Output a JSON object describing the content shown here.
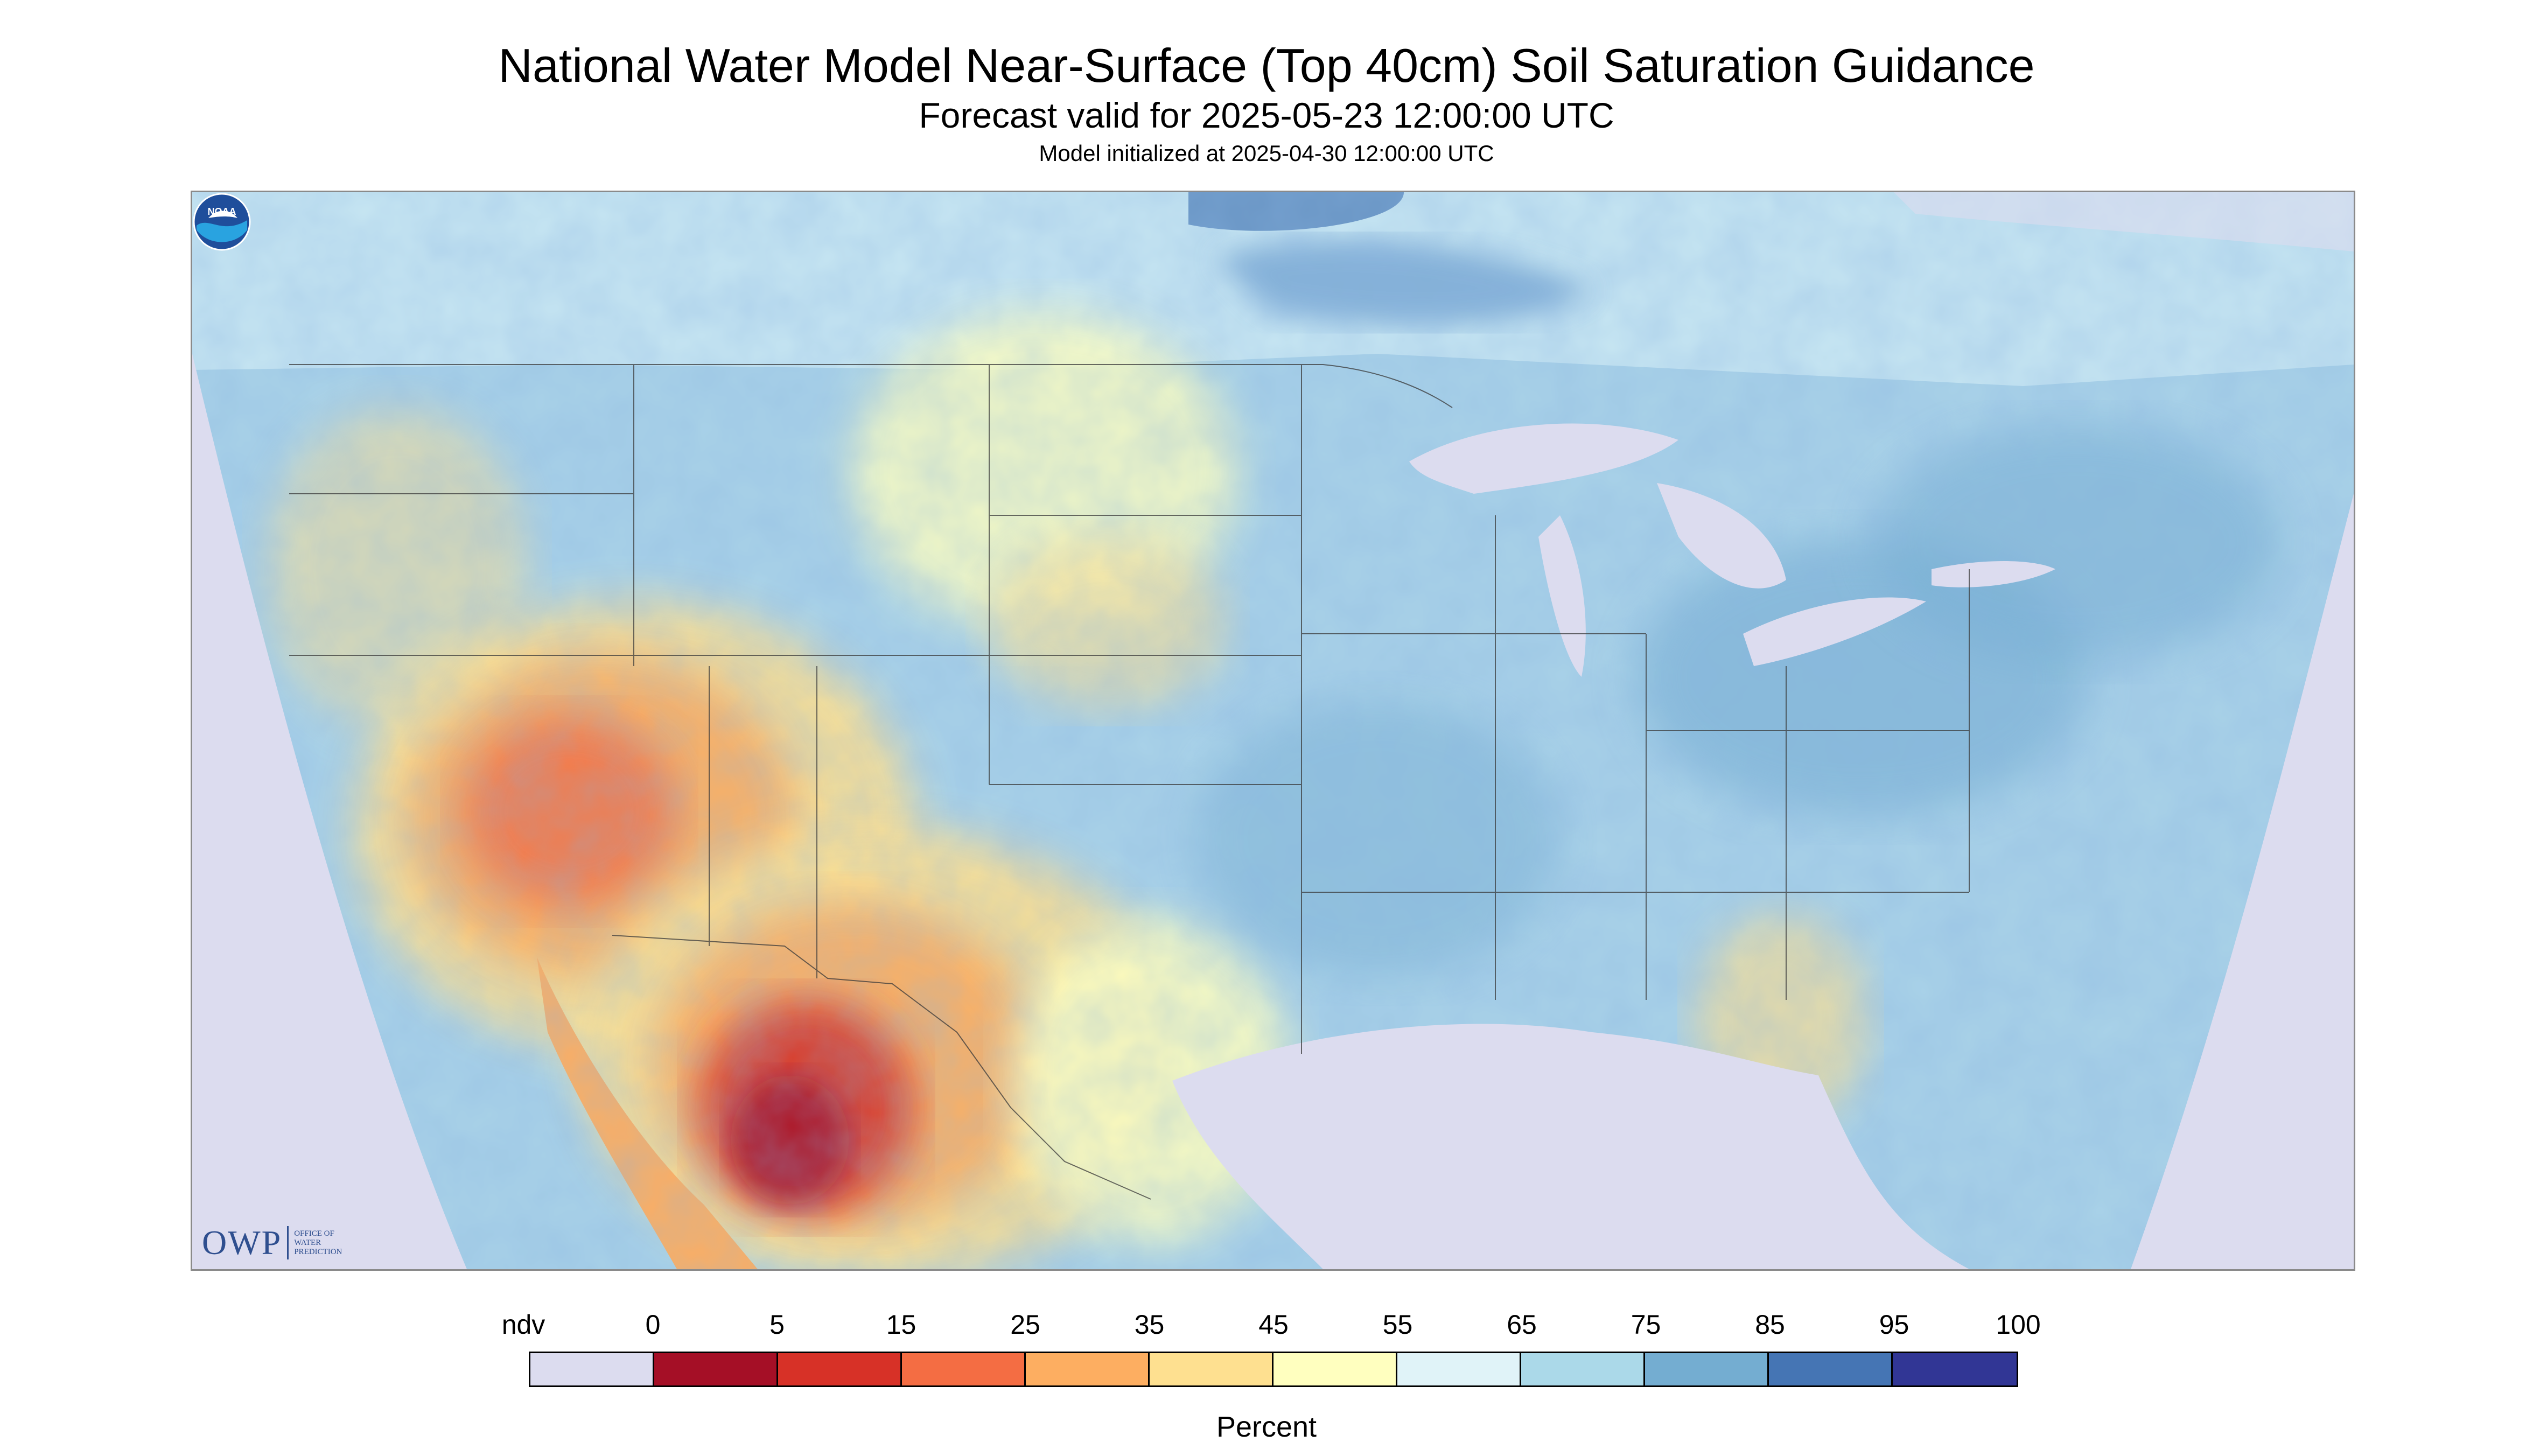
{
  "header": {
    "title": "National Water Model Near-Surface (Top 40cm) Soil Saturation Guidance",
    "subtitle": "Forecast valid for 2025-05-23 12:00:00 UTC",
    "initialized": "Model initialized at 2025-04-30 12:00:00 UTC"
  },
  "map": {
    "region": "Contiguous United States with southern Canada and northern Mexico",
    "nodata_color": "#dcdcef",
    "water_color": "#dcdcef",
    "boundary_color": "#3a3a3a"
  },
  "legend": {
    "ticks": [
      "ndv",
      "0",
      "5",
      "15",
      "25",
      "35",
      "45",
      "55",
      "65",
      "75",
      "85",
      "95",
      "100"
    ],
    "bins": [
      {
        "range": "ndv",
        "color": "#dcdcef"
      },
      {
        "range": "0-5",
        "color": "#a50f26"
      },
      {
        "range": "5-15",
        "color": "#d73127"
      },
      {
        "range": "15-25",
        "color": "#f46d43"
      },
      {
        "range": "25-35",
        "color": "#fdae61"
      },
      {
        "range": "35-45",
        "color": "#fee090"
      },
      {
        "range": "45-55",
        "color": "#ffffbf"
      },
      {
        "range": "55-65",
        "color": "#e0f3f8"
      },
      {
        "range": "65-75",
        "color": "#abd9e9"
      },
      {
        "range": "75-85",
        "color": "#74add1"
      },
      {
        "range": "85-95",
        "color": "#4575b4"
      },
      {
        "range": "95-100",
        "color": "#313695"
      }
    ],
    "unit": "Percent"
  },
  "logos": {
    "owp_mark": "OWP",
    "owp_text": [
      "Office of",
      "Water",
      "Prediction"
    ],
    "noaa_text": "NOAA",
    "noaa_icon": "noaa-emblem-icon"
  }
}
